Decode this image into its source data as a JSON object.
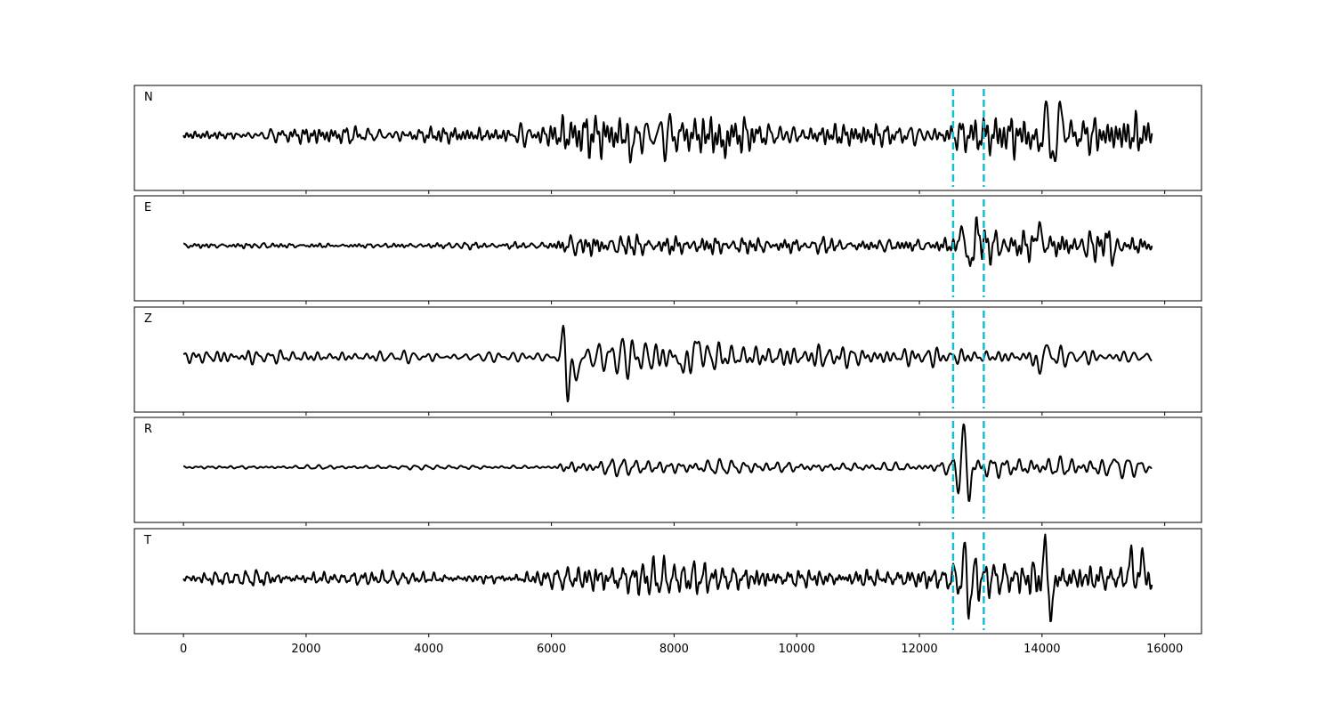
{
  "chart_data": {
    "type": "line",
    "x_range": [
      -800,
      16600
    ],
    "x_ticks": [
      0,
      2000,
      4000,
      6000,
      8000,
      10000,
      12000,
      14000,
      16000
    ],
    "x_tick_labels": [
      "0",
      "2000",
      "4000",
      "6000",
      "8000",
      "10000",
      "12000",
      "14000",
      "16000"
    ],
    "x_max": 15800,
    "markers": {
      "x": [
        12550,
        13050
      ],
      "color": "#17becf",
      "style": "dashed"
    },
    "trace_color": "#000000",
    "panels": [
      {
        "label": "N",
        "envelope": [
          [
            0,
            0.07
          ],
          [
            1000,
            0.09
          ],
          [
            2000,
            0.14
          ],
          [
            3000,
            0.12
          ],
          [
            4000,
            0.14
          ],
          [
            5000,
            0.12
          ],
          [
            5200,
            0.26
          ],
          [
            6000,
            0.3
          ],
          [
            7000,
            0.34
          ],
          [
            8000,
            0.36
          ],
          [
            8800,
            0.32
          ],
          [
            10000,
            0.22
          ],
          [
            11000,
            0.18
          ],
          [
            12000,
            0.2
          ],
          [
            12500,
            0.24
          ],
          [
            13000,
            0.28
          ],
          [
            13500,
            0.36
          ],
          [
            14000,
            0.48
          ],
          [
            14200,
            0.5
          ],
          [
            14600,
            0.34
          ],
          [
            15000,
            0.28
          ],
          [
            15500,
            0.32
          ],
          [
            15800,
            0.32
          ]
        ],
        "peaks": [
          [
            14080,
            0.56
          ],
          [
            14150,
            -0.6
          ],
          [
            14330,
            0.43
          ],
          [
            7300,
            -0.32
          ],
          [
            8800,
            -0.3
          ],
          [
            13900,
            -0.25
          ]
        ]
      },
      {
        "label": "E",
        "envelope": [
          [
            0,
            0.05
          ],
          [
            3000,
            0.04
          ],
          [
            6000,
            0.06
          ],
          [
            6150,
            0.14
          ],
          [
            6300,
            0.22
          ],
          [
            7000,
            0.16
          ],
          [
            8000,
            0.18
          ],
          [
            9000,
            0.15
          ],
          [
            10000,
            0.13
          ],
          [
            11000,
            0.1
          ],
          [
            12000,
            0.12
          ],
          [
            12500,
            0.14
          ],
          [
            12800,
            0.4
          ],
          [
            13100,
            0.28
          ],
          [
            13500,
            0.24
          ],
          [
            14000,
            0.26
          ],
          [
            14500,
            0.2
          ],
          [
            15000,
            0.26
          ],
          [
            15800,
            0.12
          ]
        ],
        "peaks": [
          [
            12720,
            0.55
          ],
          [
            12800,
            -0.7
          ],
          [
            12950,
            0.36
          ],
          [
            13950,
            0.42
          ],
          [
            15100,
            0.32
          ],
          [
            15150,
            -0.36
          ]
        ]
      },
      {
        "label": "Z",
        "envelope": [
          [
            0,
            0.1
          ],
          [
            2000,
            0.1
          ],
          [
            3000,
            0.09
          ],
          [
            4000,
            0.08
          ],
          [
            5000,
            0.08
          ],
          [
            6000,
            0.07
          ],
          [
            6200,
            0.4
          ],
          [
            6400,
            0.28
          ],
          [
            7500,
            0.32
          ],
          [
            8500,
            0.25
          ],
          [
            9500,
            0.2
          ],
          [
            10500,
            0.15
          ],
          [
            12000,
            0.13
          ],
          [
            13000,
            0.14
          ],
          [
            14000,
            0.18
          ],
          [
            15000,
            0.16
          ],
          [
            15800,
            0.13
          ]
        ],
        "peaks": [
          [
            6220,
            0.8
          ],
          [
            6250,
            -0.5
          ],
          [
            6270,
            -0.55
          ],
          [
            6400,
            -0.52
          ],
          [
            8150,
            -0.35
          ],
          [
            8400,
            0.32
          ],
          [
            14050,
            0.25
          ],
          [
            13950,
            -0.36
          ]
        ]
      },
      {
        "label": "R",
        "envelope": [
          [
            0,
            0.04
          ],
          [
            3000,
            0.04
          ],
          [
            6000,
            0.04
          ],
          [
            6200,
            0.17
          ],
          [
            6500,
            0.15
          ],
          [
            7500,
            0.16
          ],
          [
            8500,
            0.14
          ],
          [
            9500,
            0.12
          ],
          [
            10500,
            0.1
          ],
          [
            11500,
            0.09
          ],
          [
            12000,
            0.09
          ],
          [
            12500,
            0.15
          ],
          [
            12800,
            0.3
          ],
          [
            13100,
            0.25
          ],
          [
            14000,
            0.22
          ],
          [
            15000,
            0.18
          ],
          [
            15800,
            0.12
          ]
        ],
        "peaks": [
          [
            12720,
            0.8
          ],
          [
            12800,
            -0.52
          ],
          [
            12650,
            -0.34
          ],
          [
            15100,
            0.4
          ],
          [
            15070,
            -0.36
          ]
        ]
      },
      {
        "label": "T",
        "envelope": [
          [
            0,
            0.1
          ],
          [
            1000,
            0.12
          ],
          [
            2000,
            0.11
          ],
          [
            3000,
            0.12
          ],
          [
            4000,
            0.1
          ],
          [
            5000,
            0.09
          ],
          [
            6000,
            0.16
          ],
          [
            6500,
            0.24
          ],
          [
            7300,
            0.28
          ],
          [
            8000,
            0.3
          ],
          [
            8800,
            0.24
          ],
          [
            10000,
            0.18
          ],
          [
            11000,
            0.16
          ],
          [
            12000,
            0.18
          ],
          [
            12500,
            0.22
          ],
          [
            12800,
            0.34
          ],
          [
            13200,
            0.28
          ],
          [
            13600,
            0.3
          ],
          [
            14050,
            0.4
          ],
          [
            14500,
            0.26
          ],
          [
            15500,
            0.24
          ],
          [
            15800,
            0.26
          ]
        ],
        "peaks": [
          [
            14070,
            0.8
          ],
          [
            14120,
            -0.5
          ],
          [
            14150,
            -0.5
          ],
          [
            12800,
            -0.56
          ],
          [
            12760,
            0.48
          ],
          [
            15450,
            0.38
          ],
          [
            15650,
            0.4
          ],
          [
            15800,
            -0.24
          ]
        ]
      }
    ]
  }
}
